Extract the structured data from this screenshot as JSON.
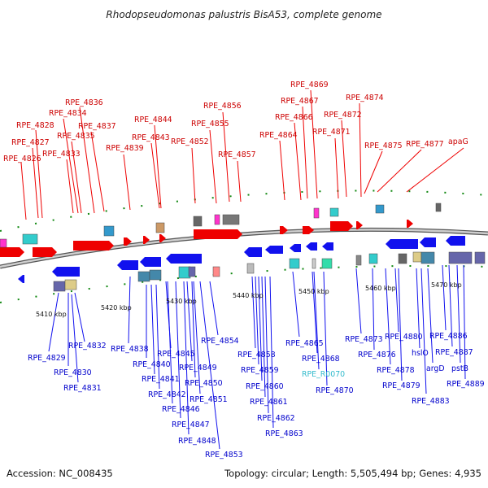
{
  "title": "Rhodopseudomonas palustris BisA53, complete genome",
  "footer": {
    "accession": "Accession: NC_008435",
    "summary": "Topology: circular; Length: 5,505,494 bp; Genes: 4,935"
  },
  "scale_ticks": [
    "5410 kbp",
    "5420 kbp",
    "5430 kbp",
    "5440 kbp",
    "5450 kbp",
    "5460 kbp",
    "5470 kbp"
  ],
  "top_labels": [
    "RPE_4826",
    "RPE_4827",
    "RPE_4828",
    "RPE_4833",
    "RPE_4835",
    "RPE_4834",
    "RPE_4836",
    "RPE_4837",
    "RPE_4839",
    "RPE_4843",
    "RPE_4844",
    "RPE_4852",
    "RPE_4855",
    "RPE_4856",
    "RPE_4857",
    "RPE_4864",
    "RPE_4866",
    "RPE_4867",
    "RPE_4869",
    "RPE_4871",
    "RPE_4872",
    "RPE_4874",
    "RPE_4875",
    "RPE_4877",
    "apaG"
  ],
  "bottom_labels": [
    "RPE_4829",
    "RPE_4830",
    "RPE_4831",
    "RPE_4832",
    "RPE_4838",
    "RPE_4840",
    "RPE_4841",
    "RPE_4842",
    "RPE_4845",
    "RPE_4846",
    "RPE_4847",
    "RPE_4848",
    "RPE_4849",
    "RPE_4850",
    "RPE_4851",
    "RPE_4853",
    "RPE_4854",
    "RPE_4858",
    "RPE_4859",
    "RPE_4860",
    "RPE_4861",
    "RPE_4862",
    "RPE_4863",
    "RPE_4865",
    "RPE_4868",
    "RPE_R0070",
    "RPE_4870",
    "RPE_4873",
    "RPE_4876",
    "RPE_4878",
    "RPE_4879",
    "RPE_4880",
    "hslO",
    "argD",
    "RPE_4883",
    "RPE_4886",
    "RPE_4887",
    "pstB",
    "RPE_4889"
  ],
  "colors": {
    "forward_gene": "#ee0000",
    "reverse_gene": "#1111ee",
    "rna_label": "#33bbcc",
    "backbone": "#888888",
    "grid_tick": "#118811"
  }
}
